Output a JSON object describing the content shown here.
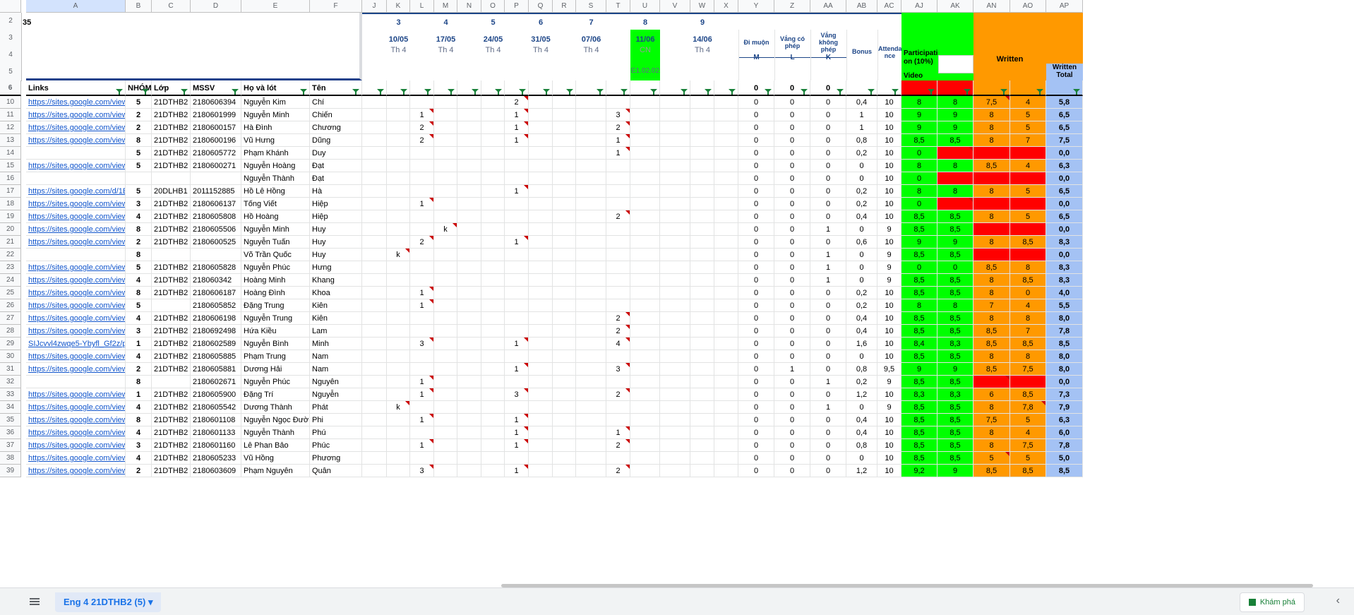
{
  "sheet_tab": "Eng 4 21DTHB2 (5)",
  "explore_label": "Khám phá",
  "columns": [
    "A",
    "B",
    "C",
    "D",
    "E",
    "F",
    "J",
    "K",
    "L",
    "M",
    "N",
    "O",
    "P",
    "Q",
    "R",
    "S",
    "T",
    "U",
    "V",
    "W",
    "X",
    "Y",
    "Z",
    "AA",
    "AB",
    "AC",
    "AJ",
    "AK",
    "AN",
    "AO",
    "AP"
  ],
  "header_rows": {
    "row2": {
      "A": "35",
      "K": "3",
      "M": "4",
      "O": "5",
      "Q": "6",
      "S": "7",
      "U": "8",
      "W": "9"
    },
    "dates": [
      {
        "col": "K",
        "date": "10/05",
        "day": "Th 4"
      },
      {
        "col": "M",
        "date": "17/05",
        "day": "Th 4"
      },
      {
        "col": "O",
        "date": "24/05",
        "day": "Th 4"
      },
      {
        "col": "Q",
        "date": "31/05",
        "day": "Th 4"
      },
      {
        "col": "S",
        "date": "07/06",
        "day": "Th 4"
      },
      {
        "col": "U",
        "date": "11/06",
        "day": "CN",
        "room": "E1.02.02"
      },
      {
        "col": "W",
        "date": "14/06",
        "day": "Th 4"
      }
    ],
    "late": "Đi muộn",
    "excused": "Vắng có phép",
    "unexcused": "Vắng không phép",
    "late_code": "M",
    "excused_code": "L",
    "unexcused_code": "K",
    "bonus": "Bonus",
    "attendance": "Attenda nce",
    "participation": "Participati on (10%)",
    "video": "Video",
    "written": "Written",
    "written_total": "Written Total",
    "row6": {
      "A": "Links",
      "B": "NHÓM",
      "C": "Lớp",
      "D": "MSSV",
      "E": "Họ và lót",
      "F": "Tên",
      "Y": "0",
      "Z": "0",
      "AA": "0"
    }
  },
  "rows": [
    {
      "n": "10",
      "link": "https://sites.google.com/view/2180",
      "g": "5",
      "lop": "21DTHB2",
      "mssv": "2180606394",
      "ho": "Nguyễn Kim",
      "ten": "Chí",
      "K": "",
      "L": "",
      "M": "",
      "P": "2",
      "T": "",
      "Y": "0",
      "Z": "0",
      "AA": "0",
      "AB": "0,4",
      "AC": "10",
      "AJ": "8",
      "AK": "8",
      "AN": "7,5",
      "AO": "4",
      "AP": "5,8"
    },
    {
      "n": "11",
      "link": "https://sites.google.com/view/21dt",
      "g": "2",
      "lop": "21DTHB2",
      "mssv": "2180601999",
      "ho": "Nguyễn Minh",
      "ten": "Chiến",
      "K": "",
      "L": "1",
      "M": "",
      "P": "1",
      "T": "3",
      "Y": "0",
      "Z": "0",
      "AA": "0",
      "AB": "1",
      "AC": "10",
      "AJ": "9",
      "AK": "9",
      "AN": "8",
      "AO": "5",
      "AP": "6,5"
    },
    {
      "n": "12",
      "link": "https://sites.google.com/view/21dt",
      "g": "2",
      "lop": "21DTHB2",
      "mssv": "2180600157",
      "ho": "Hà Đình",
      "ten": "Chương",
      "K": "",
      "L": "2",
      "M": "",
      "P": "1",
      "T": "2",
      "Y": "0",
      "Z": "0",
      "AA": "0",
      "AB": "1",
      "AC": "10",
      "AJ": "9",
      "AK": "9",
      "AN": "8",
      "AO": "5",
      "AP": "6,5"
    },
    {
      "n": "13",
      "link": "https://sites.google.com/view/21dt",
      "g": "8",
      "lop": "21DTHB2",
      "mssv": "2180600196",
      "ho": "Vũ Hưng",
      "ten": "Dũng",
      "K": "",
      "L": "2",
      "M": "",
      "P": "1",
      "T": "1",
      "Y": "0",
      "Z": "0",
      "AA": "0",
      "AB": "0,8",
      "AC": "10",
      "AJ": "8,5",
      "AK": "8,5",
      "AN": "8",
      "AO": "7",
      "AP": "7,5"
    },
    {
      "n": "14",
      "link": "",
      "g": "5",
      "lop": "21DTHB2",
      "mssv": "2180605772",
      "ho": "Phạm Khánh",
      "ten": "Duy",
      "K": "",
      "L": "",
      "M": "",
      "P": "",
      "T": "1",
      "Y": "0",
      "Z": "0",
      "AA": "0",
      "AB": "0,2",
      "AC": "10",
      "AJ": "0",
      "AK": "",
      "AN": "",
      "AO": "",
      "AP": "0,0"
    },
    {
      "n": "15",
      "link": "https://sites.google.com/view/21dt",
      "g": "5",
      "lop": "21DTHB2",
      "mssv": "2180600271",
      "ho": "Nguyễn Hoàng",
      "ten": "Đạt",
      "K": "",
      "L": "",
      "M": "",
      "P": "",
      "T": "",
      "Y": "0",
      "Z": "0",
      "AA": "0",
      "AB": "0",
      "AC": "10",
      "AJ": "8",
      "AK": "8",
      "AN": "8,5",
      "AO": "4",
      "AP": "6,3"
    },
    {
      "n": "16",
      "link": "",
      "g": "",
      "lop": "",
      "mssv": "",
      "ho": "Nguyễn Thành",
      "ten": "Đạt",
      "K": "",
      "L": "",
      "M": "",
      "P": "",
      "T": "",
      "Y": "0",
      "Z": "0",
      "AA": "0",
      "AB": "0",
      "AC": "10",
      "AJ": "0",
      "AK": "",
      "AN": "",
      "AO": "",
      "AP": "0,0"
    },
    {
      "n": "17",
      "link": "https://sites.google.com/d/1EjmW",
      "g": "5",
      "lop": "20DLHB1",
      "mssv": "2011152885",
      "ho": "Hồ Lê Hồng",
      "ten": "Hà",
      "K": "",
      "L": "",
      "M": "",
      "P": "1",
      "T": "",
      "Y": "0",
      "Z": "0",
      "AA": "0",
      "AB": "0,2",
      "AC": "10",
      "AJ": "8",
      "AK": "8",
      "AN": "8",
      "AO": "5",
      "AP": "6,5"
    },
    {
      "n": "18",
      "link": "https://sites.google.com/view/2",
      "g": "3",
      "lop": "21DTHB2",
      "mssv": "2180606137",
      "ho": "Tống Viết",
      "ten": "Hiệp",
      "K": "",
      "L": "1",
      "M": "",
      "P": "",
      "T": "",
      "Y": "0",
      "Z": "0",
      "AA": "0",
      "AB": "0,2",
      "AC": "10",
      "AJ": "0",
      "AK": "",
      "AN": "",
      "AO": "",
      "AP": "0,0"
    },
    {
      "n": "19",
      "link": "https://sites.google.com/view/21dt",
      "g": "4",
      "lop": "21DTHB2",
      "mssv": "2180605808",
      "ho": "Hồ Hoàng",
      "ten": "Hiệp",
      "K": "",
      "L": "",
      "M": "",
      "P": "",
      "T": "2",
      "Y": "0",
      "Z": "0",
      "AA": "0",
      "AB": "0,4",
      "AC": "10",
      "AJ": "8,5",
      "AK": "8,5",
      "AN": "8",
      "AO": "5",
      "AP": "6,5"
    },
    {
      "n": "20",
      "link": "https://sites.google.com/view/21dt",
      "g": "8",
      "lop": "21DTHB2",
      "mssv": "2180605506",
      "ho": "Nguyễn Minh",
      "ten": "Huy",
      "K": "",
      "L": "",
      "M": "k",
      "P": "",
      "T": "",
      "Y": "0",
      "Z": "0",
      "AA": "1",
      "AB": "0",
      "AC": "9",
      "AJ": "8,5",
      "AK": "8,5",
      "AN": "",
      "AO": "",
      "AP": "0,0"
    },
    {
      "n": "21",
      "link": "https://sites.google.com/view/2180",
      "g": "2",
      "lop": "21DTHB2",
      "mssv": "2180600525",
      "ho": "Nguyễn Tuấn",
      "ten": "Huy",
      "K": "",
      "L": "2",
      "M": "",
      "P": "1",
      "T": "",
      "Y": "0",
      "Z": "0",
      "AA": "0",
      "AB": "0,6",
      "AC": "10",
      "AJ": "9",
      "AK": "9",
      "AN": "8",
      "AO": "8,5",
      "AP": "8,3"
    },
    {
      "n": "22",
      "link": "",
      "g": "8",
      "lop": "",
      "mssv": "",
      "ho": "Võ Trần Quốc",
      "ten": "Huy",
      "K": "k",
      "L": "",
      "M": "",
      "P": "",
      "T": "",
      "Y": "0",
      "Z": "0",
      "AA": "1",
      "AB": "0",
      "AC": "9",
      "AJ": "8,5",
      "AK": "8,5",
      "AN": "",
      "AO": "",
      "AP": "0,0"
    },
    {
      "n": "23",
      "link": "https://sites.google.com/view/21dt",
      "g": "5",
      "lop": "21DTHB2",
      "mssv": "2180605828",
      "ho": "Nguyễn Phúc",
      "ten": "Hưng",
      "K": "",
      "L": "",
      "M": "",
      "P": "",
      "T": "",
      "Y": "0",
      "Z": "0",
      "AA": "1",
      "AB": "0",
      "AC": "9",
      "AJ": "0",
      "AK": "0",
      "AN": "8,5",
      "AO": "8",
      "AP": "8,3"
    },
    {
      "n": "24",
      "link": "https://sites.google.com/view/21dt",
      "g": "4",
      "lop": "21DTHB2",
      "mssv": "218060342",
      "ho": "Hoàng Minh",
      "ten": "Khang",
      "K": "",
      "L": "",
      "M": "",
      "P": "",
      "T": "",
      "Y": "0",
      "Z": "0",
      "AA": "1",
      "AB": "0",
      "AC": "9",
      "AJ": "8,5",
      "AK": "8,5",
      "AN": "8",
      "AO": "8,5",
      "AP": "8,3"
    },
    {
      "n": "25",
      "link": "https://sites.google.com/view/21dthi",
      "g": "8",
      "lop": "21DTHB2",
      "mssv": "2180606187",
      "ho": "Hoàng Đình",
      "ten": "Khoa",
      "K": "",
      "L": "1",
      "M": "",
      "P": "",
      "T": "",
      "Y": "0",
      "Z": "0",
      "AA": "0",
      "AB": "0,2",
      "AC": "10",
      "AJ": "8,5",
      "AK": "8,5",
      "AN": "8",
      "AO": "0",
      "AP": "4,0"
    },
    {
      "n": "26",
      "link": "https://sites.google.com/view/21dt",
      "g": "5",
      "lop": "",
      "mssv": "2180605852",
      "ho": "Đặng Trung",
      "ten": "Kiên",
      "K": "",
      "L": "1",
      "M": "",
      "P": "",
      "T": "",
      "Y": "0",
      "Z": "0",
      "AA": "0",
      "AB": "0,2",
      "AC": "10",
      "AJ": "8",
      "AK": "8",
      "AN": "7",
      "AO": "4",
      "AP": "5,5"
    },
    {
      "n": "27",
      "link": "https://sites.google.com/view/21dt",
      "g": "4",
      "lop": "21DTHB2",
      "mssv": "2180606198",
      "ho": "Nguyễn Trung",
      "ten": "Kiên",
      "K": "",
      "L": "",
      "M": "",
      "P": "",
      "T": "2",
      "Y": "0",
      "Z": "0",
      "AA": "0",
      "AB": "0,4",
      "AC": "10",
      "AJ": "8,5",
      "AK": "8,5",
      "AN": "8",
      "AO": "8",
      "AP": "8,0"
    },
    {
      "n": "28",
      "link": "https://sites.google.com/view/21dt",
      "g": "3",
      "lop": "21DTHB2",
      "mssv": "2180692498",
      "ho": "Hứa Kiều",
      "ten": "Lam",
      "K": "",
      "L": "",
      "M": "",
      "P": "",
      "T": "2",
      "Y": "0",
      "Z": "0",
      "AA": "0",
      "AB": "0,4",
      "AC": "10",
      "AJ": "8,5",
      "AK": "8,5",
      "AN": "8,5",
      "AO": "7",
      "AP": "7,8"
    },
    {
      "n": "29",
      "link": "SIJcvvl4zwqe5-Ybyfl_Gf2z/p/1dnEWl",
      "g": "1",
      "lop": "21DTHB2",
      "mssv": "2180602589",
      "ho": "Nguyễn Bình",
      "ten": "Minh",
      "K": "",
      "L": "3",
      "M": "",
      "P": "1",
      "T": "4",
      "Y": "0",
      "Z": "0",
      "AA": "0",
      "AB": "1,6",
      "AC": "10",
      "AJ": "8,4",
      "AK": "8,3",
      "AN": "8,5",
      "AO": "8,5",
      "AP": "8,5"
    },
    {
      "n": "30",
      "link": "https://sites.google.com/view/21dt",
      "g": "4",
      "lop": "21DTHB2",
      "mssv": "2180605885",
      "ho": "Phạm Trung",
      "ten": "Nam",
      "K": "",
      "L": "",
      "M": "",
      "P": "",
      "T": "",
      "Y": "0",
      "Z": "0",
      "AA": "0",
      "AB": "0",
      "AC": "10",
      "AJ": "8,5",
      "AK": "8,5",
      "AN": "8",
      "AO": "8",
      "AP": "8,0"
    },
    {
      "n": "31",
      "link": "https://sites.google.com/view/21dthb2",
      "g": "2",
      "lop": "21DTHB2",
      "mssv": "2180605881",
      "ho": "Dương Hải",
      "ten": "Nam",
      "K": "",
      "L": "",
      "M": "",
      "P": "1",
      "T": "3",
      "Y": "0",
      "Z": "1",
      "AA": "0",
      "AB": "0,8",
      "AC": "9,5",
      "AJ": "9",
      "AK": "9",
      "AN": "8,5",
      "AO": "7,5",
      "AP": "8,0"
    },
    {
      "n": "32",
      "link": "",
      "g": "8",
      "lop": "",
      "mssv": "2180602671",
      "ho": "Nguyễn Phúc",
      "ten": "Nguyên",
      "K": "",
      "L": "1",
      "M": "",
      "P": "",
      "T": "",
      "Y": "0",
      "Z": "0",
      "AA": "1",
      "AB": "0,2",
      "AC": "9",
      "AJ": "8,5",
      "AK": "8,5",
      "AN": "",
      "AO": "",
      "AP": "0,0"
    },
    {
      "n": "33",
      "link": "https://sites.google.com/view/21dt",
      "g": "1",
      "lop": "21DTHB2",
      "mssv": "2180605900",
      "ho": "Đặng Trí",
      "ten": "Nguyễn",
      "K": "",
      "L": "1",
      "M": "",
      "P": "3",
      "T": "2",
      "Y": "0",
      "Z": "0",
      "AA": "0",
      "AB": "1,2",
      "AC": "10",
      "AJ": "8,3",
      "AK": "8,3",
      "AN": "6",
      "AO": "8,5",
      "AP": "7,3"
    },
    {
      "n": "34",
      "link": "https://sites.google.com/view/21dt",
      "g": "4",
      "lop": "21DTHB2",
      "mssv": "2180605542",
      "ho": "Dương Thành",
      "ten": "Phát",
      "K": "k",
      "L": "",
      "M": "",
      "P": "",
      "T": "",
      "Y": "0",
      "Z": "0",
      "AA": "1",
      "AB": "0",
      "AC": "9",
      "AJ": "8,5",
      "AK": "8,5",
      "AN": "8",
      "AO": "7,8",
      "AP": "7,9"
    },
    {
      "n": "35",
      "link": "https://sites.google.com/view/21dt",
      "g": "8",
      "lop": "21DTHB2",
      "mssv": "2180601108",
      "ho": "Nguyễn Ngọc Đường",
      "ten": "Phi",
      "K": "",
      "L": "1",
      "M": "",
      "P": "1",
      "T": "",
      "Y": "0",
      "Z": "0",
      "AA": "0",
      "AB": "0,4",
      "AC": "10",
      "AJ": "8,5",
      "AK": "8,5",
      "AN": "7,5",
      "AO": "5",
      "AP": "6,3"
    },
    {
      "n": "36",
      "link": "https://sites.google.com/view/21dt",
      "g": "4",
      "lop": "21DTHB2",
      "mssv": "2180601133",
      "ho": "Nguyễn Thành",
      "ten": "Phú",
      "K": "",
      "L": "",
      "M": "",
      "P": "1",
      "T": "1",
      "Y": "0",
      "Z": "0",
      "AA": "0",
      "AB": "0,4",
      "AC": "10",
      "AJ": "8,5",
      "AK": "8,5",
      "AN": "8",
      "AO": "4",
      "AP": "6,0"
    },
    {
      "n": "37",
      "link": "https://sites.google.com/view/le-ph",
      "g": "3",
      "lop": "21DTHB2",
      "mssv": "2180601160",
      "ho": "Lê Phan Bảo",
      "ten": "Phúc",
      "K": "",
      "L": "1",
      "M": "",
      "P": "1",
      "T": "2",
      "Y": "0",
      "Z": "0",
      "AA": "0",
      "AB": "0,8",
      "AC": "10",
      "AJ": "8,5",
      "AK": "8,5",
      "AN": "8",
      "AO": "7,5",
      "AP": "7,8"
    },
    {
      "n": "38",
      "link": "https://sites.google.com/view/21dt",
      "g": "4",
      "lop": "21DTHB2",
      "mssv": "2180605233",
      "ho": "Vũ Hồng",
      "ten": "Phương",
      "K": "",
      "L": "",
      "M": "",
      "P": "",
      "T": "",
      "Y": "0",
      "Z": "0",
      "AA": "0",
      "AB": "0",
      "AC": "10",
      "AJ": "8,5",
      "AK": "8,5",
      "AN": "5",
      "AO": "5",
      "AP": "5,0"
    },
    {
      "n": "39",
      "link": "https://sites.google.com/view/21d",
      "g": "2",
      "lop": "21DTHB2",
      "mssv": "2180603609",
      "ho": "Phạm Nguyên",
      "ten": "Quân",
      "K": "",
      "L": "3",
      "M": "",
      "P": "1",
      "T": "2",
      "Y": "0",
      "Z": "0",
      "AA": "0",
      "AB": "1,2",
      "AC": "10",
      "AJ": "9,2",
      "AK": "9",
      "AN": "8,5",
      "AO": "8,5",
      "AP": "8,5"
    }
  ]
}
